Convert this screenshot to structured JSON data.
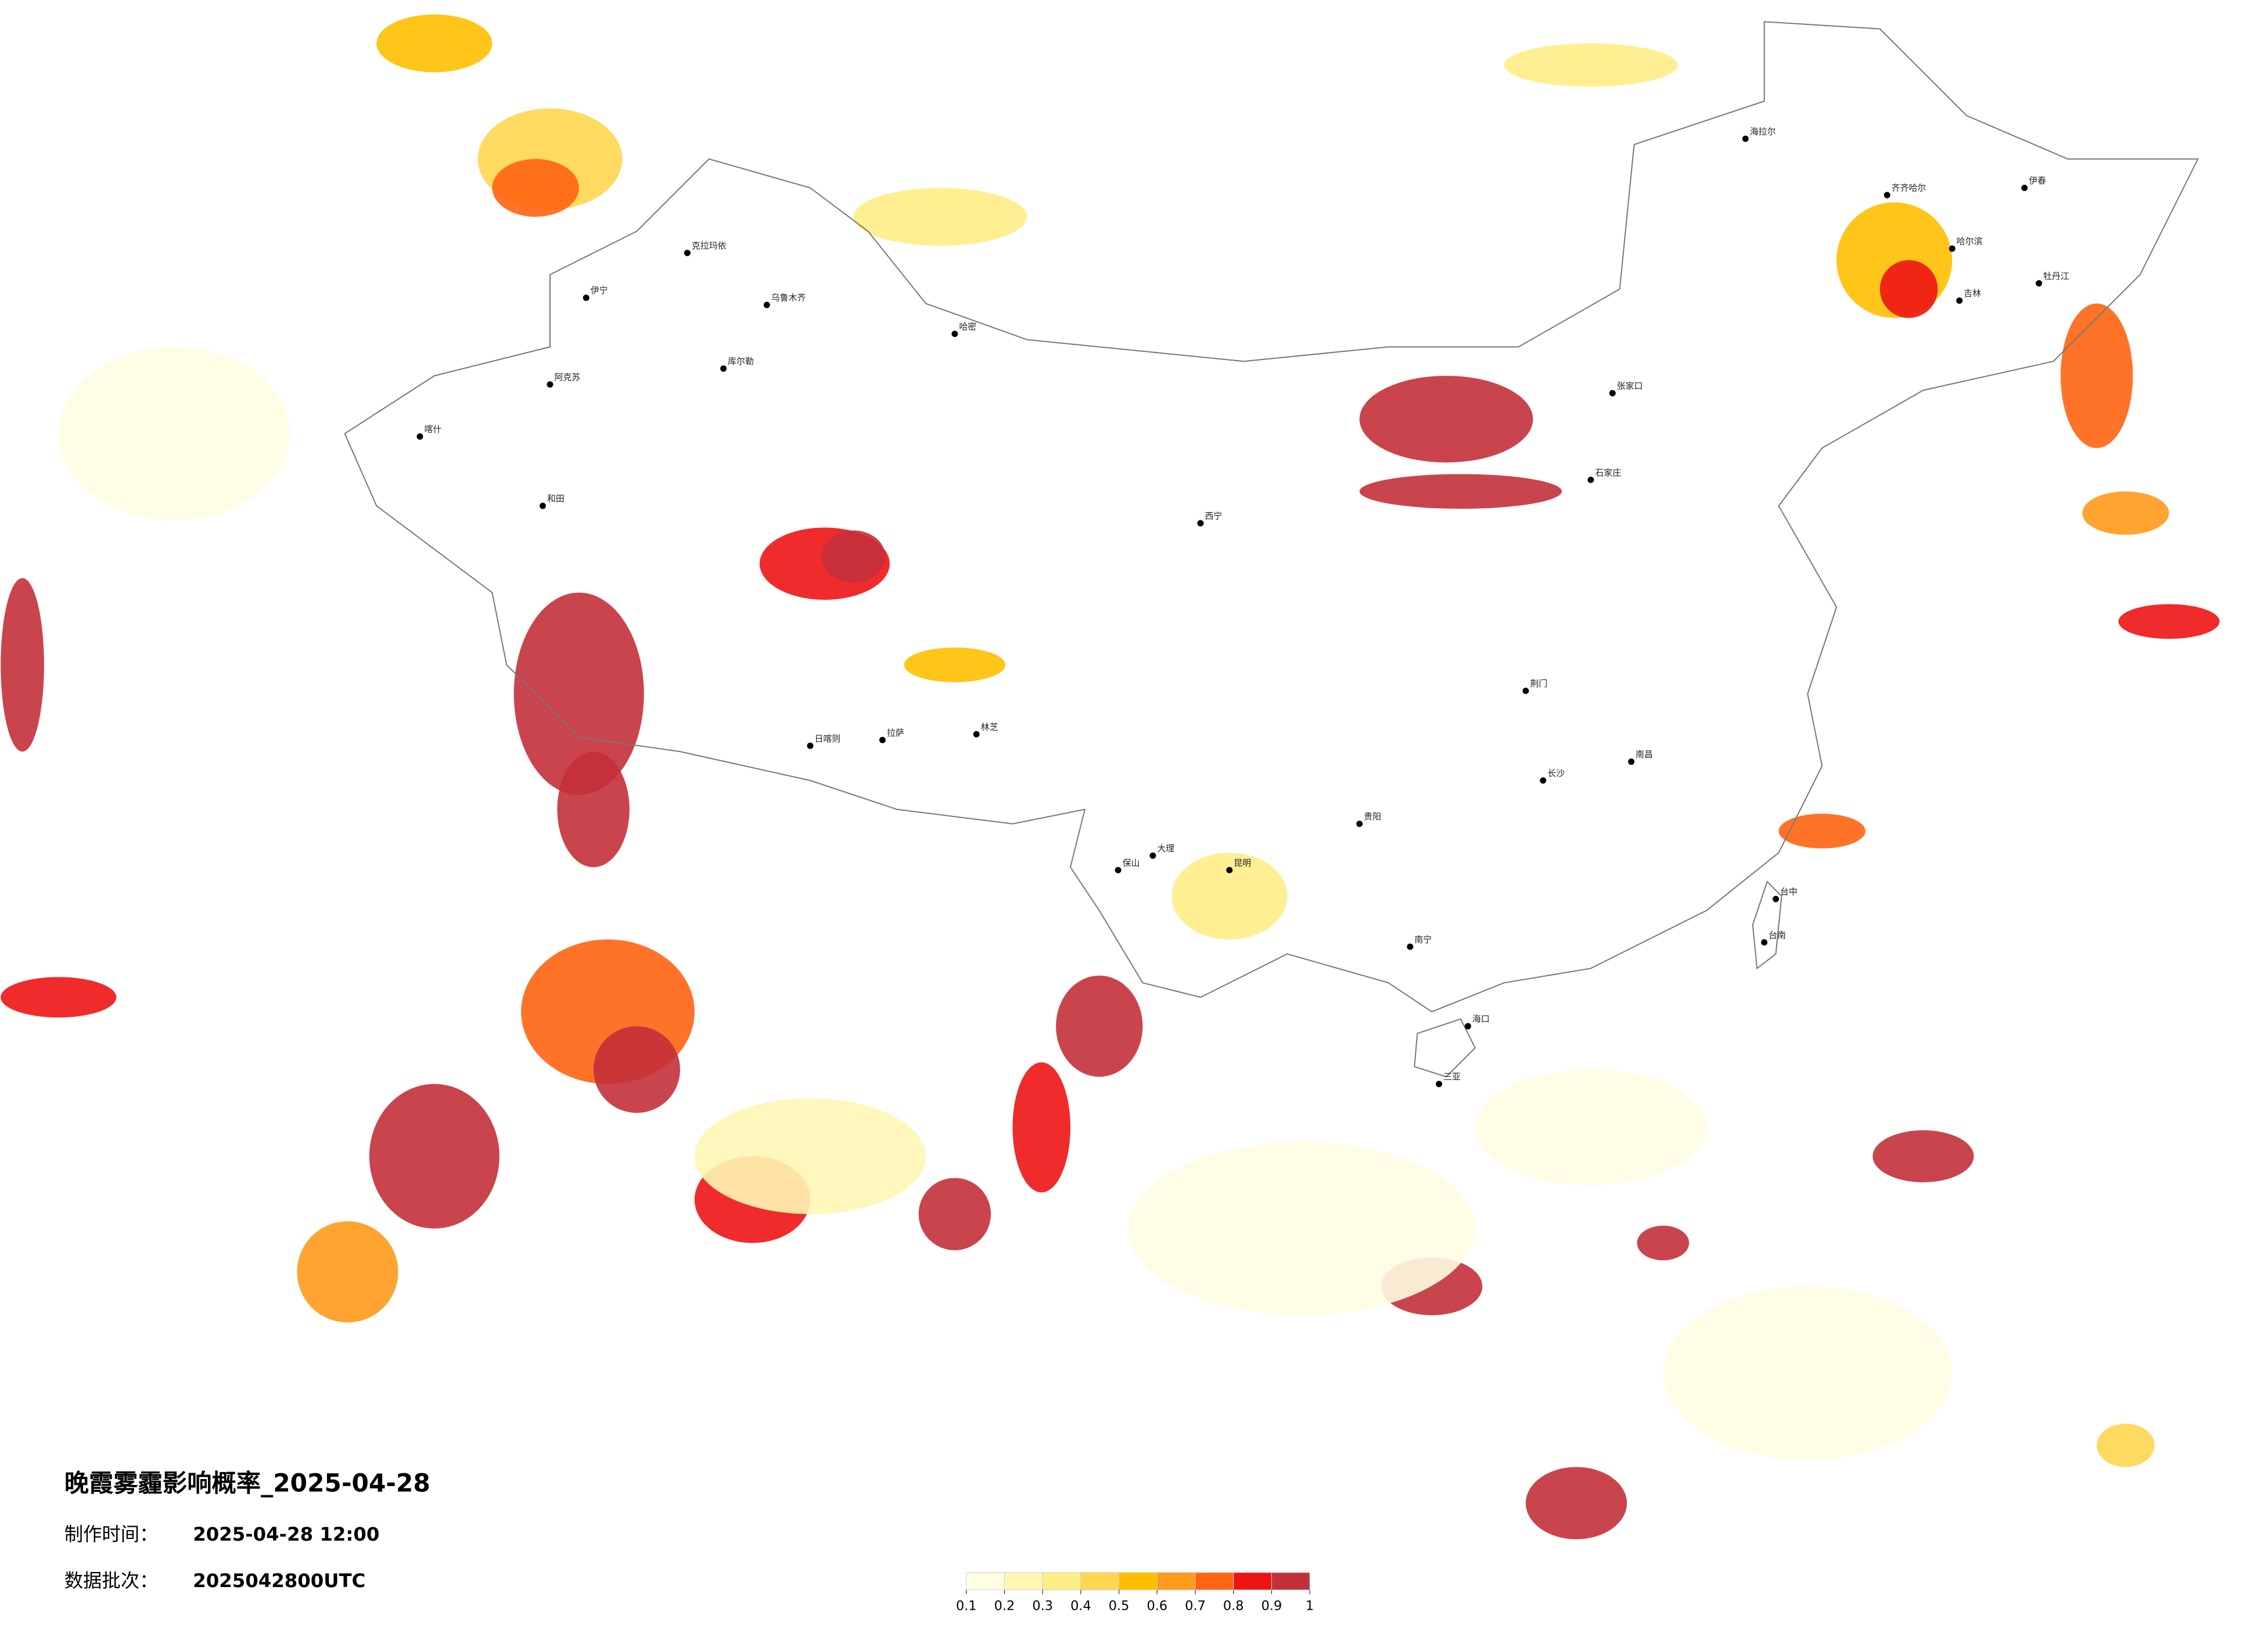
{
  "title": "晚霞雾霾影响概率_2025-04-28",
  "made_label": "制作时间：",
  "made_value": "2025-04-28 12:00",
  "batch_label": "数据批次：",
  "batch_value": "2025042800UTC",
  "legend": {
    "ticks": [
      0.1,
      0.2,
      0.3,
      0.4,
      0.5,
      0.6,
      0.7,
      0.8,
      0.9,
      1
    ],
    "colors": [
      "#fffde2",
      "#fff6b4",
      "#ffed86",
      "#ffd650",
      "#ffbf00",
      "#ff9a1a",
      "#ff6412",
      "#ee1414",
      "#c4303a"
    ]
  },
  "cities": [
    "克拉玛依",
    "伊宁",
    "乌鲁木齐",
    "哈密",
    "库尔勒",
    "阿克苏",
    "喀什",
    "和田",
    "日喀则",
    "拉萨",
    "林芝",
    "西宁",
    "大理",
    "保山",
    "昆明",
    "贵阳",
    "南宁",
    "海口",
    "三亚",
    "长沙",
    "南昌",
    "荆门",
    "石家庄",
    "张家口",
    "海拉尔",
    "齐齐哈尔",
    "哈尔滨",
    "吉林",
    "伊春",
    "牡丹江",
    "台中",
    "台南"
  ]
}
